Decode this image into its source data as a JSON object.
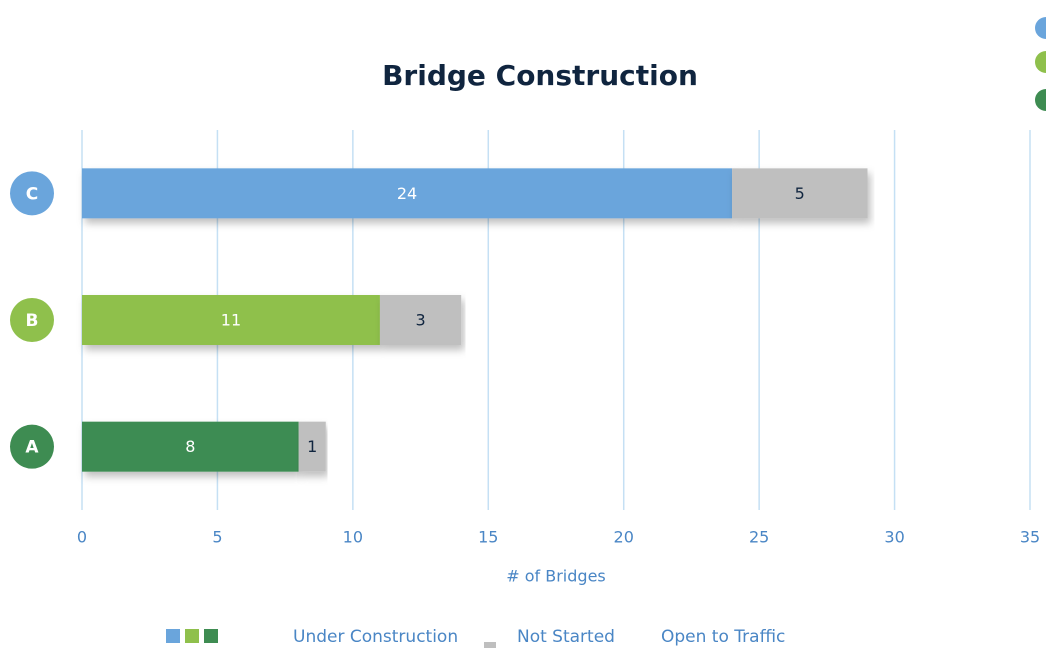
{
  "chart_data": {
    "type": "stacked_barh",
    "title": "Bridge Construction",
    "categories": [
      "A",
      "B",
      "C"
    ],
    "series": [
      {
        "name": "Under Construction",
        "colors": [
          "#3e8c52",
          "#8fc04c",
          "#6aa5dc"
        ],
        "values": [
          8,
          11,
          24
        ]
      },
      {
        "name": "Not Started",
        "color": "#bfbfbf",
        "values": [
          1,
          3,
          5
        ]
      }
    ],
    "annotations": [
      "Open to Traffic"
    ],
    "xlabel": "# of Bridges",
    "xlim": [
      0,
      35
    ],
    "xticks": [
      0,
      5,
      10,
      15,
      20,
      25,
      30,
      35
    ],
    "grid": true
  }
}
